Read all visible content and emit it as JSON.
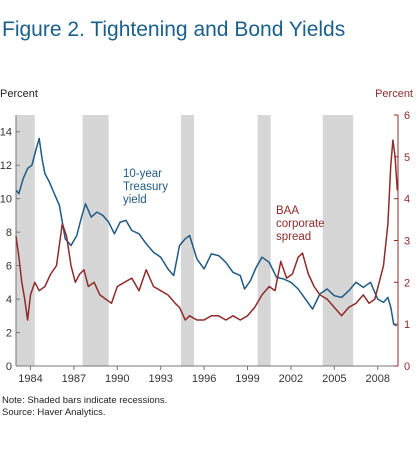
{
  "figure": {
    "title": "Figure 2. Tightening and Bond Yields",
    "note": "Note: Shaded bars indicate recessions.",
    "source": "Source: Haver Analytics."
  },
  "chart_data": {
    "type": "line",
    "ylabel_left": "Percent",
    "ylabel_right": "Percent",
    "ylim_left": [
      0,
      15
    ],
    "ylim_right": [
      0,
      6
    ],
    "yticks_left": [
      0,
      2,
      4,
      6,
      8,
      10,
      12,
      14
    ],
    "yticks_right": [
      0,
      1,
      2,
      3,
      4,
      5,
      6
    ],
    "xlim": [
      1983.0,
      2009.4
    ],
    "xticks": [
      1984,
      1987,
      1990,
      1993,
      1996,
      1999,
      2002,
      2005,
      2008
    ],
    "recessions": [
      [
        1983.0,
        1984.3
      ],
      [
        1987.6,
        1989.4
      ],
      [
        1994.4,
        1995.3
      ],
      [
        1999.7,
        2000.6
      ],
      [
        2004.2,
        2006.3
      ]
    ],
    "annotations": [
      {
        "text": [
          "10-year",
          "Treasury",
          "yield"
        ],
        "series": "10-year Treasury yield"
      },
      {
        "text": [
          "BAA",
          "corporate",
          "spread"
        ],
        "series": "BAA corporate spread"
      }
    ],
    "series": [
      {
        "name": "10-year Treasury yield",
        "axis": "left",
        "color": "#1f5a84",
        "x": [
          1983.0,
          1983.2,
          1983.5,
          1983.8,
          1984.1,
          1984.4,
          1984.6,
          1984.8,
          1985.0,
          1985.3,
          1985.6,
          1986.0,
          1986.4,
          1986.8,
          1987.2,
          1987.5,
          1987.8,
          1988.2,
          1988.6,
          1989.0,
          1989.4,
          1989.8,
          1990.2,
          1990.6,
          1991.0,
          1991.5,
          1992.0,
          1992.5,
          1993.0,
          1993.5,
          1993.9,
          1994.3,
          1994.7,
          1995.0,
          1995.5,
          1996.0,
          1996.5,
          1997.0,
          1997.5,
          1998.0,
          1998.5,
          1998.8,
          1999.2,
          1999.6,
          2000.0,
          2000.5,
          2001.0,
          2001.5,
          2002.0,
          2002.5,
          2003.0,
          2003.5,
          2004.0,
          2004.5,
          2005.0,
          2005.5,
          2006.0,
          2006.5,
          2007.0,
          2007.5,
          2008.0,
          2008.4,
          2008.7,
          2008.9,
          2009.1,
          2009.3
        ],
        "values": [
          10.5,
          10.3,
          11.2,
          11.8,
          12.0,
          13.0,
          13.6,
          12.4,
          11.5,
          11.0,
          10.4,
          9.6,
          7.6,
          7.2,
          7.8,
          8.8,
          9.7,
          8.9,
          9.2,
          9.0,
          8.6,
          7.9,
          8.6,
          8.7,
          8.1,
          7.9,
          7.3,
          6.8,
          6.5,
          5.8,
          5.4,
          7.2,
          7.6,
          7.8,
          6.4,
          5.8,
          6.7,
          6.6,
          6.2,
          5.6,
          5.4,
          4.6,
          5.1,
          5.9,
          6.5,
          6.2,
          5.3,
          5.2,
          5.0,
          4.6,
          4.0,
          3.4,
          4.3,
          4.6,
          4.2,
          4.1,
          4.5,
          5.0,
          4.7,
          5.0,
          4.0,
          3.8,
          4.1,
          3.5,
          2.5,
          2.4
        ]
      },
      {
        "name": "BAA corporate spread",
        "axis": "right",
        "color": "#8f2b2b",
        "x": [
          1983.0,
          1983.2,
          1983.4,
          1983.6,
          1983.8,
          1984.0,
          1984.3,
          1984.6,
          1985.0,
          1985.4,
          1985.8,
          1986.2,
          1986.5,
          1986.8,
          1987.1,
          1987.4,
          1987.7,
          1988.0,
          1988.4,
          1988.8,
          1989.2,
          1989.6,
          1990.0,
          1990.5,
          1991.0,
          1991.5,
          1992.0,
          1992.5,
          1993.0,
          1993.5,
          1994.0,
          1994.3,
          1994.7,
          1995.0,
          1995.5,
          1996.0,
          1996.5,
          1997.0,
          1997.5,
          1998.0,
          1998.5,
          1999.0,
          1999.5,
          2000.0,
          2000.5,
          2000.9,
          2001.3,
          2001.7,
          2002.1,
          2002.5,
          2002.8,
          2003.2,
          2003.6,
          2004.0,
          2004.5,
          2005.0,
          2005.5,
          2006.0,
          2006.5,
          2007.0,
          2007.4,
          2007.8,
          2008.1,
          2008.4,
          2008.7,
          2008.9,
          2009.05,
          2009.2,
          2009.35
        ],
        "values": [
          3.1,
          2.6,
          2.0,
          1.6,
          1.1,
          1.7,
          2.0,
          1.8,
          1.9,
          2.2,
          2.4,
          3.4,
          3.1,
          2.4,
          2.0,
          2.2,
          2.3,
          1.9,
          2.0,
          1.7,
          1.6,
          1.5,
          1.9,
          2.0,
          2.1,
          1.8,
          2.3,
          1.9,
          1.8,
          1.7,
          1.5,
          1.4,
          1.1,
          1.2,
          1.1,
          1.1,
          1.2,
          1.2,
          1.1,
          1.2,
          1.1,
          1.2,
          1.4,
          1.7,
          1.9,
          1.8,
          2.5,
          2.1,
          2.2,
          2.6,
          2.7,
          2.2,
          1.9,
          1.7,
          1.6,
          1.4,
          1.2,
          1.4,
          1.5,
          1.7,
          1.5,
          1.6,
          2.0,
          2.4,
          3.4,
          4.8,
          5.4,
          5.0,
          4.2
        ]
      }
    ]
  }
}
